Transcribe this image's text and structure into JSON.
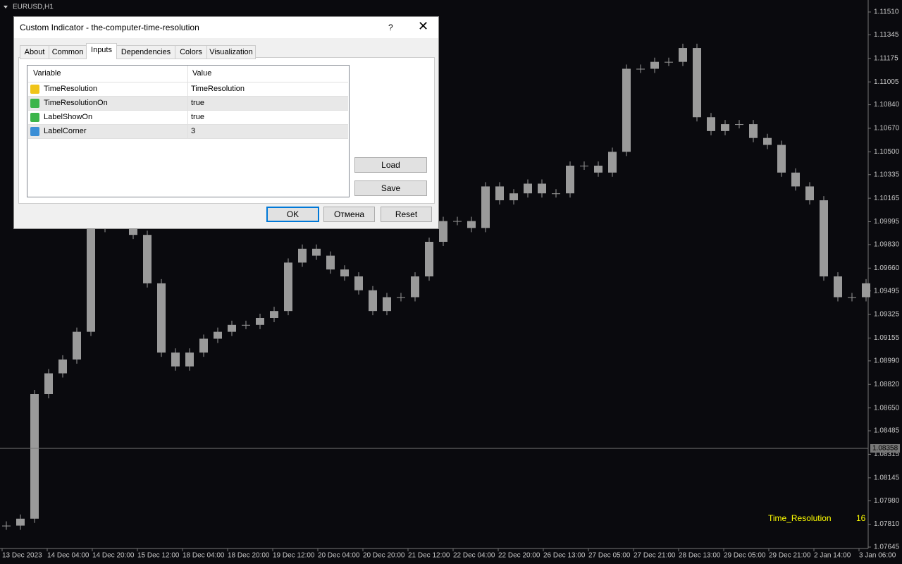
{
  "window": {
    "symbol": "EURUSD,H1",
    "current_price": {
      "value": 1.08358,
      "label": "1.08358"
    },
    "indicator_label": "Time_Resolution",
    "indicator_value": "16"
  },
  "chart": {
    "ylim": [
      1.07645,
      1.1151
    ],
    "yticks": [
      {
        "value": 1.1151,
        "label": "1.11510"
      },
      {
        "value": 1.11345,
        "label": "1.11345"
      },
      {
        "value": 1.11175,
        "label": "1.11175"
      },
      {
        "value": 1.11005,
        "label": "1.11005"
      },
      {
        "value": 1.1084,
        "label": "1.10840"
      },
      {
        "value": 1.1067,
        "label": "1.10670"
      },
      {
        "value": 1.105,
        "label": "1.10500"
      },
      {
        "value": 1.10335,
        "label": "1.10335"
      },
      {
        "value": 1.10165,
        "label": "1.10165"
      },
      {
        "value": 1.09995,
        "label": "1.09995"
      },
      {
        "value": 1.0983,
        "label": "1.09830"
      },
      {
        "value": 1.0966,
        "label": "1.09660"
      },
      {
        "value": 1.09495,
        "label": "1.09495"
      },
      {
        "value": 1.09325,
        "label": "1.09325"
      },
      {
        "value": 1.09155,
        "label": "1.09155"
      },
      {
        "value": 1.0899,
        "label": "1.08990"
      },
      {
        "value": 1.0882,
        "label": "1.08820"
      },
      {
        "value": 1.0865,
        "label": "1.08650"
      },
      {
        "value": 1.08485,
        "label": "1.08485"
      },
      {
        "value": 1.08315,
        "label": "1.08315"
      },
      {
        "value": 1.08145,
        "label": "1.08145"
      },
      {
        "value": 1.0798,
        "label": "1.07980"
      },
      {
        "value": 1.0781,
        "label": "1.07810"
      },
      {
        "value": 1.07645,
        "label": "1.07645"
      }
    ],
    "categories": [
      "13 Dec 2023",
      "14 Dec 04:00",
      "14 Dec 20:00",
      "15 Dec 12:00",
      "18 Dec 04:00",
      "18 Dec 20:00",
      "19 Dec 12:00",
      "20 Dec 04:00",
      "20 Dec 20:00",
      "21 Dec 12:00",
      "22 Dec 04:00",
      "22 Dec 20:00",
      "26 Dec 13:00",
      "27 Dec 05:00",
      "27 Dec 21:00",
      "28 Dec 13:00",
      "29 Dec 05:00",
      "29 Dec 21:00",
      "2 Jan 14:00",
      "3 Jan 06:00"
    ],
    "closes": [
      1.078,
      1.0785,
      1.0875,
      1.089,
      1.09,
      1.092,
      1.0995,
      1.1,
      1.1,
      1.099,
      1.0955,
      1.0905,
      1.0895,
      1.0905,
      1.0915,
      1.092,
      1.0925,
      1.0925,
      1.093,
      1.0935,
      1.097,
      1.098,
      1.0975,
      1.0965,
      1.096,
      1.095,
      1.0935,
      1.0945,
      1.0945,
      1.096,
      1.0985,
      1.1,
      1.1,
      1.0995,
      1.1025,
      1.1015,
      1.102,
      1.1027,
      1.102,
      1.102,
      1.104,
      1.104,
      1.1035,
      1.105,
      1.111,
      1.111,
      1.1115,
      1.1115,
      1.1125,
      1.1075,
      1.1065,
      1.107,
      1.107,
      1.106,
      1.1055,
      1.1035,
      1.1025,
      1.1015,
      1.096,
      1.0945,
      1.0945,
      1.0955
    ]
  },
  "dialog": {
    "title": "Custom Indicator - the-computer-time-resolution",
    "help": "?",
    "tabs": [
      "About",
      "Common",
      "Inputs",
      "Dependencies",
      "Colors",
      "Visualization"
    ],
    "table": {
      "header": [
        "Variable",
        "Value"
      ],
      "rows": [
        [
          "TimeResolution",
          "TimeResolution"
        ],
        [
          "TimeResolutionOn",
          "true"
        ],
        [
          "LabelShowOn",
          "true"
        ],
        [
          "LabelCorner",
          "3"
        ]
      ]
    },
    "buttons": {
      "load": "Load",
      "save": "Save",
      "ok": "OK",
      "cancel": "Отмена",
      "reset": "Reset"
    }
  }
}
